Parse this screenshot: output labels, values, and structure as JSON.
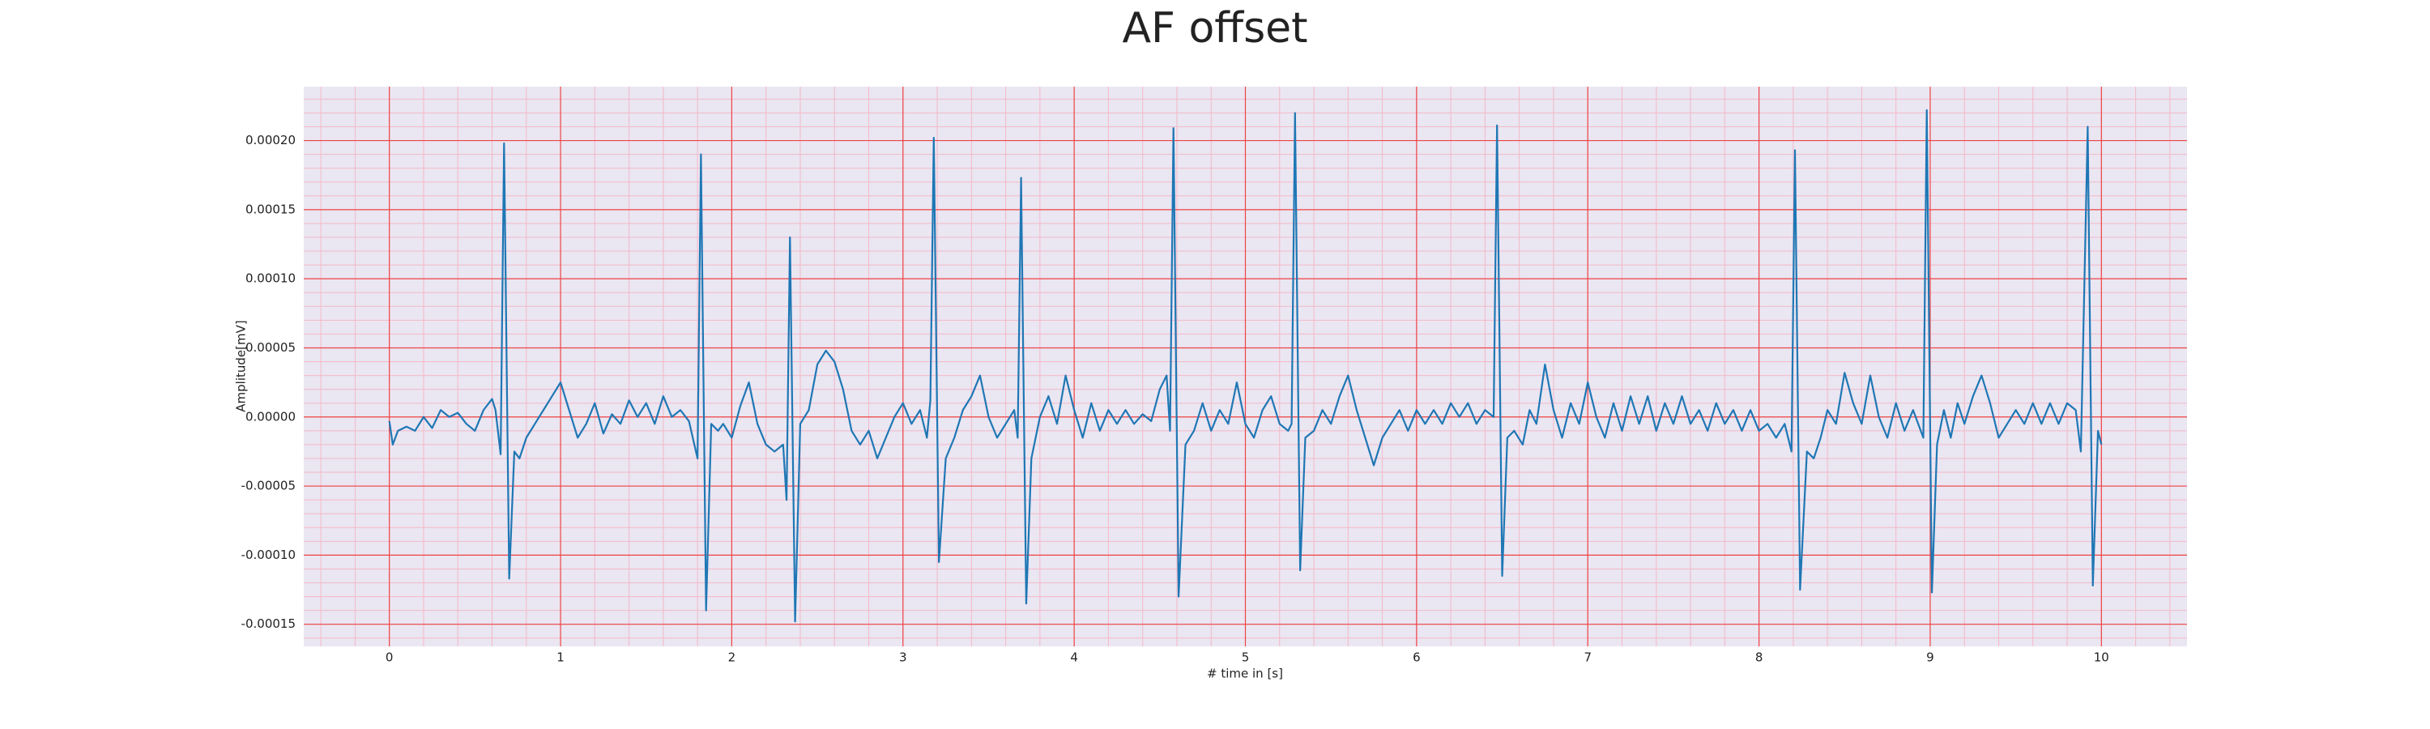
{
  "chart_data": {
    "type": "line",
    "title": "AF offset",
    "xlabel": "# time in [s]",
    "ylabel": "Amplitude[mV]",
    "color": "#1f77b4",
    "grid": true,
    "xlim": [
      -0.5,
      10.5
    ],
    "ylim": [
      -0.000166,
      0.000239
    ],
    "xticks": [
      0,
      1,
      2,
      3,
      4,
      5,
      6,
      7,
      8,
      9,
      10
    ],
    "yticks": [
      {
        "value": -0.00015,
        "label": "-0.00015"
      },
      {
        "value": -0.0001,
        "label": "-0.00010"
      },
      {
        "value": -5e-05,
        "label": "-0.00005"
      },
      {
        "value": 0,
        "label": "0.00000"
      },
      {
        "value": 5e-05,
        "label": "0.00005"
      },
      {
        "value": 0.0001,
        "label": "0.00010"
      },
      {
        "value": 0.00015,
        "label": "0.00015"
      },
      {
        "value": 0.0002,
        "label": "0.00020"
      }
    ],
    "x": [
      0.0,
      0.02,
      0.05,
      0.1,
      0.15,
      0.2,
      0.25,
      0.3,
      0.35,
      0.4,
      0.45,
      0.5,
      0.55,
      0.6,
      0.62,
      0.65,
      0.67,
      0.7,
      0.73,
      0.76,
      0.8,
      0.85,
      0.9,
      0.95,
      1.0,
      1.05,
      1.1,
      1.15,
      1.2,
      1.25,
      1.3,
      1.35,
      1.4,
      1.45,
      1.5,
      1.55,
      1.6,
      1.65,
      1.7,
      1.75,
      1.8,
      1.82,
      1.85,
      1.88,
      1.92,
      1.95,
      2.0,
      2.05,
      2.1,
      2.15,
      2.2,
      2.25,
      2.3,
      2.32,
      2.34,
      2.37,
      2.4,
      2.45,
      2.5,
      2.55,
      2.6,
      2.65,
      2.7,
      2.75,
      2.8,
      2.85,
      2.9,
      2.95,
      3.0,
      3.05,
      3.1,
      3.14,
      3.16,
      3.18,
      3.21,
      3.25,
      3.3,
      3.35,
      3.4,
      3.45,
      3.5,
      3.55,
      3.6,
      3.65,
      3.67,
      3.69,
      3.72,
      3.75,
      3.8,
      3.85,
      3.9,
      3.95,
      4.0,
      4.05,
      4.1,
      4.15,
      4.2,
      4.25,
      4.3,
      4.35,
      4.4,
      4.45,
      4.5,
      4.54,
      4.56,
      4.58,
      4.61,
      4.65,
      4.7,
      4.75,
      4.8,
      4.85,
      4.9,
      4.95,
      5.0,
      5.05,
      5.1,
      5.15,
      5.2,
      5.25,
      5.27,
      5.29,
      5.32,
      5.35,
      5.4,
      5.45,
      5.5,
      5.55,
      5.6,
      5.65,
      5.7,
      5.75,
      5.8,
      5.85,
      5.9,
      5.95,
      6.0,
      6.05,
      6.1,
      6.15,
      6.2,
      6.25,
      6.3,
      6.35,
      6.4,
      6.45,
      6.47,
      6.5,
      6.53,
      6.57,
      6.62,
      6.66,
      6.7,
      6.75,
      6.8,
      6.85,
      6.9,
      6.95,
      7.0,
      7.05,
      7.1,
      7.15,
      7.2,
      7.25,
      7.3,
      7.35,
      7.4,
      7.45,
      7.5,
      7.55,
      7.6,
      7.65,
      7.7,
      7.75,
      7.8,
      7.85,
      7.9,
      7.95,
      8.0,
      8.05,
      8.1,
      8.15,
      8.19,
      8.21,
      8.24,
      8.28,
      8.32,
      8.36,
      8.4,
      8.45,
      8.5,
      8.55,
      8.6,
      8.65,
      8.7,
      8.75,
      8.8,
      8.85,
      8.9,
      8.96,
      8.98,
      9.01,
      9.04,
      9.08,
      9.12,
      9.16,
      9.2,
      9.25,
      9.3,
      9.35,
      9.4,
      9.45,
      9.5,
      9.55,
      9.6,
      9.65,
      9.7,
      9.75,
      9.8,
      9.85,
      9.88,
      9.92,
      9.95,
      9.98,
      10.0
    ],
    "values": [
      -3e-06,
      -2e-05,
      -1e-05,
      -7e-06,
      -1e-05,
      0,
      -8e-06,
      5e-06,
      0,
      3e-06,
      -5e-06,
      -1e-05,
      5e-06,
      1.3e-05,
      5e-06,
      -2.7e-05,
      0.000198,
      -0.000117,
      -2.5e-05,
      -3e-05,
      -1.5e-05,
      -5e-06,
      5e-06,
      1.5e-05,
      2.5e-05,
      5e-06,
      -1.5e-05,
      -5e-06,
      1e-05,
      -1.2e-05,
      2e-06,
      -5e-06,
      1.2e-05,
      0,
      1e-05,
      -5e-06,
      1.5e-05,
      0,
      5e-06,
      -3e-06,
      -3e-05,
      0.00019,
      -0.00014,
      -5e-06,
      -1e-05,
      -5e-06,
      -1.5e-05,
      8e-06,
      2.5e-05,
      -5e-06,
      -2e-05,
      -2.5e-05,
      -2e-05,
      -6e-05,
      0.00013,
      -0.000148,
      -5e-06,
      5e-06,
      3.8e-05,
      4.8e-05,
      4e-05,
      2e-05,
      -1e-05,
      -2e-05,
      -1e-05,
      -3e-05,
      -1.5e-05,
      0,
      1e-05,
      -5e-06,
      5e-06,
      -1.5e-05,
      1.2e-05,
      0.000202,
      -0.000105,
      -3e-05,
      -1.5e-05,
      5e-06,
      1.5e-05,
      3e-05,
      0,
      -1.5e-05,
      -5e-06,
      5e-06,
      -1.5e-05,
      0.000173,
      -0.000135,
      -3e-05,
      0,
      1.5e-05,
      -5e-06,
      3e-05,
      5e-06,
      -1.5e-05,
      1e-05,
      -1e-05,
      5e-06,
      -5e-06,
      5e-06,
      -5e-06,
      2e-06,
      -3e-06,
      2e-05,
      3e-05,
      -1e-05,
      0.000209,
      -0.00013,
      -2e-05,
      -1e-05,
      1e-05,
      -1e-05,
      5e-06,
      -5e-06,
      2.5e-05,
      -5e-06,
      -1.5e-05,
      5e-06,
      1.5e-05,
      -5e-06,
      -1e-05,
      -5e-06,
      0.00022,
      -0.000111,
      -1.5e-05,
      -1e-05,
      5e-06,
      -5e-06,
      1.5e-05,
      3e-05,
      5e-06,
      -1.5e-05,
      -3.5e-05,
      -1.5e-05,
      -5e-06,
      5e-06,
      -1e-05,
      5e-06,
      -5e-06,
      5e-06,
      -5e-06,
      1e-05,
      0,
      1e-05,
      -5e-06,
      5e-06,
      0,
      0.000211,
      -0.000115,
      -1.5e-05,
      -1e-05,
      -2e-05,
      5e-06,
      -5e-06,
      3.8e-05,
      5e-06,
      -1.5e-05,
      1e-05,
      -5e-06,
      2.5e-05,
      0,
      -1.5e-05,
      1e-05,
      -1e-05,
      1.5e-05,
      -5e-06,
      1.5e-05,
      -1e-05,
      1e-05,
      -5e-06,
      1.5e-05,
      -5e-06,
      5e-06,
      -1e-05,
      1e-05,
      -5e-06,
      5e-06,
      -1e-05,
      5e-06,
      -1e-05,
      -5e-06,
      -1.5e-05,
      -5e-06,
      -2.5e-05,
      0.000193,
      -0.000125,
      -2.5e-05,
      -3e-05,
      -1.5e-05,
      5e-06,
      -5e-06,
      3.2e-05,
      1e-05,
      -5e-06,
      3e-05,
      0,
      -1.5e-05,
      1e-05,
      -1e-05,
      5e-06,
      -1.5e-05,
      0.000222,
      -0.000127,
      -2e-05,
      5e-06,
      -1.5e-05,
      1e-05,
      -5e-06,
      1.5e-05,
      3e-05,
      1e-05,
      -1.5e-05,
      -5e-06,
      5e-06,
      -5e-06,
      1e-05,
      -5e-06,
      1e-05,
      -5e-06,
      1e-05,
      5e-06,
      -2.5e-05,
      0.00021,
      -0.000122,
      -1e-05,
      -2e-05
    ]
  }
}
